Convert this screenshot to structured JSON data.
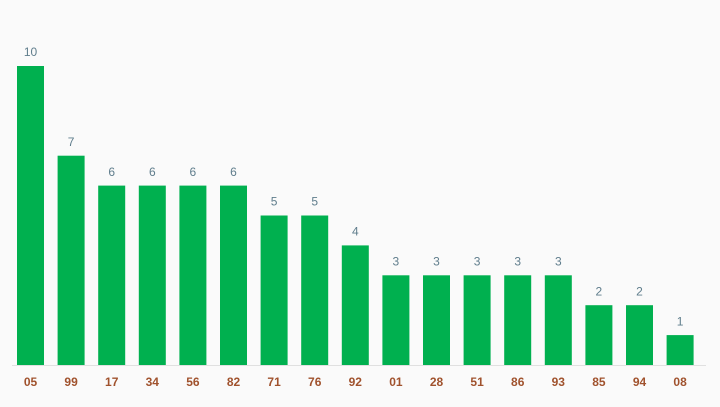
{
  "chart_data": {
    "type": "bar",
    "categories": [
      "05",
      "99",
      "17",
      "34",
      "56",
      "82",
      "71",
      "76",
      "92",
      "01",
      "28",
      "51",
      "86",
      "93",
      "85",
      "94",
      "08"
    ],
    "values": [
      10,
      7,
      6,
      6,
      6,
      6,
      5,
      5,
      4,
      3,
      3,
      3,
      3,
      3,
      2,
      2,
      1
    ],
    "color": "#00b04f"
  }
}
